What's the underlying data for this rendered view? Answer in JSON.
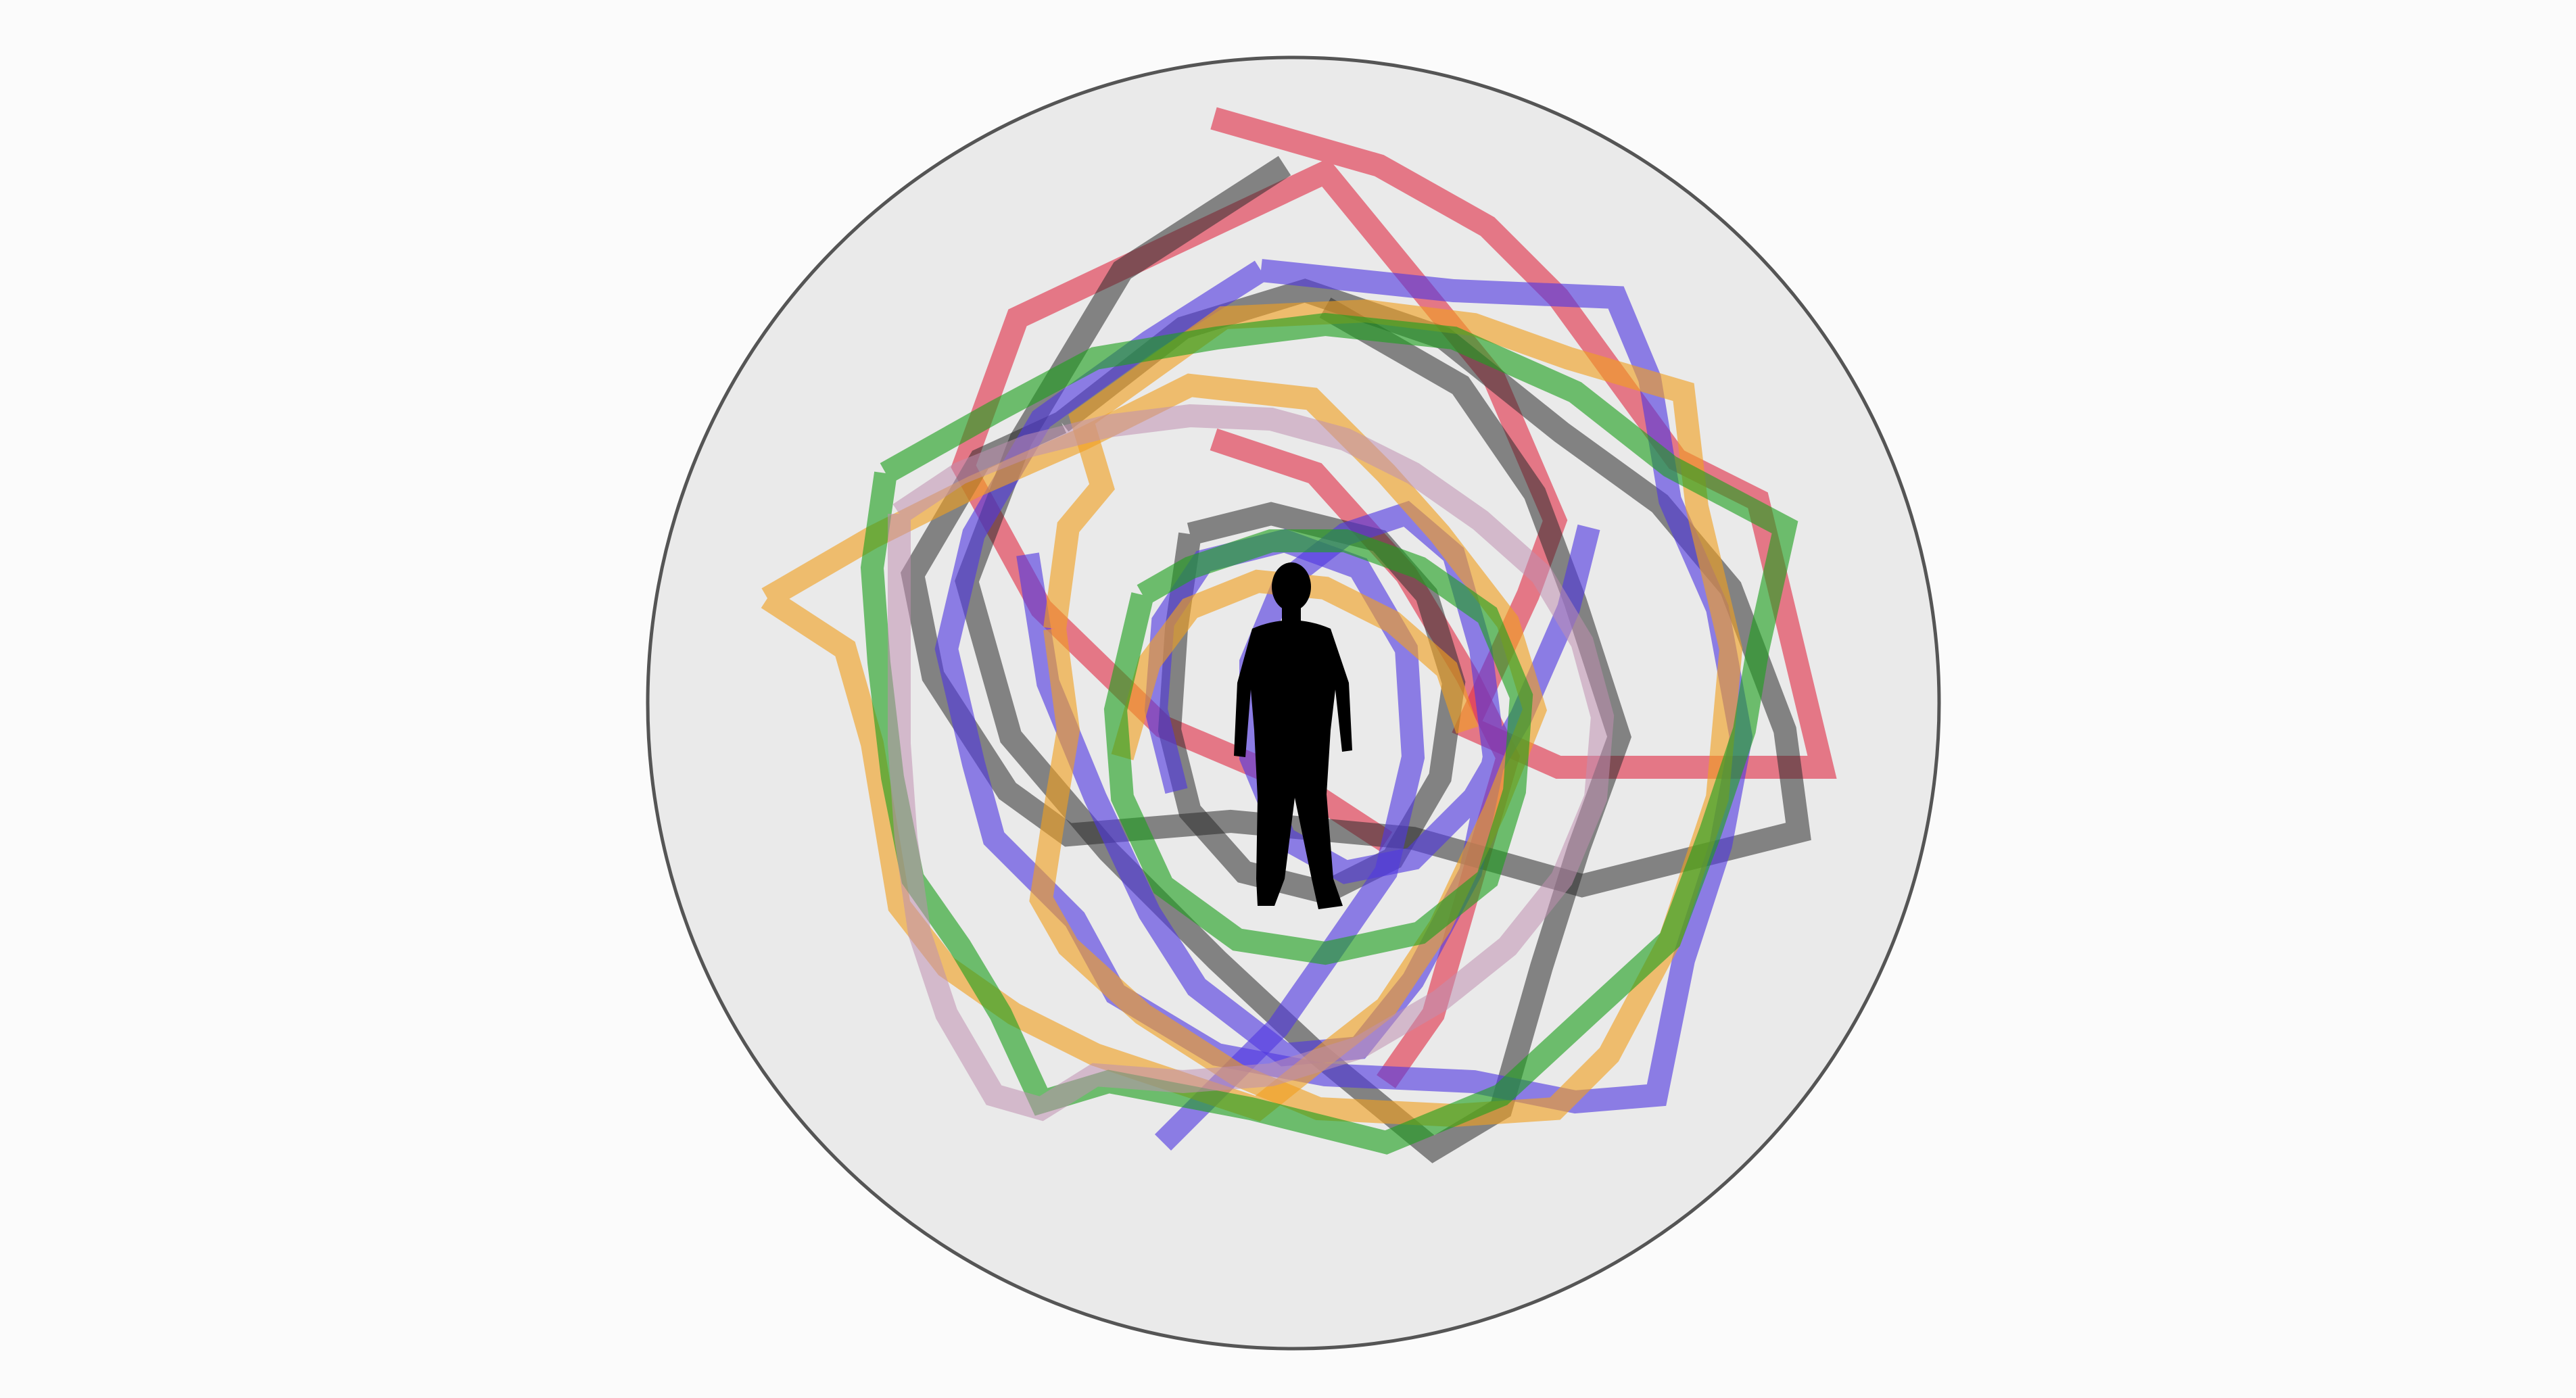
{
  "scene": {
    "background_color": "#fbfbfb",
    "sphere_fill": "#eaeaea",
    "sphere_stroke": "#555555",
    "silhouette_color": "#000000"
  },
  "rings": [
    {
      "name": "red",
      "color": "#e03048",
      "opacity": 0.62
    },
    {
      "name": "black",
      "color": "#2c2c2c",
      "opacity": 0.55
    },
    {
      "name": "blue",
      "color": "#5038e0",
      "opacity": 0.62
    },
    {
      "name": "yellow",
      "color": "#f0a020",
      "opacity": 0.62
    },
    {
      "name": "green",
      "color": "#1f9f1f",
      "opacity": 0.62
    },
    {
      "name": "pink",
      "color": "#c090b0",
      "opacity": 0.55
    }
  ]
}
